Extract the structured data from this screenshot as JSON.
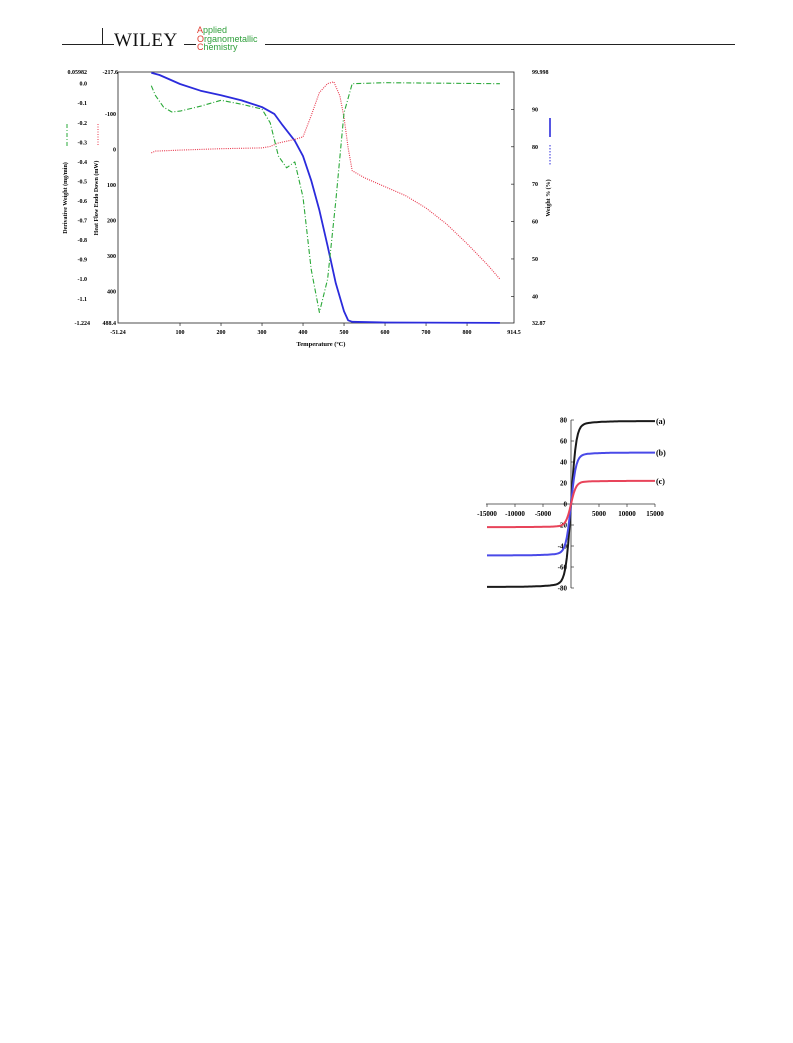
{
  "header": {
    "publisher": "WILEY",
    "journal_lines": [
      {
        "initial": "A",
        "rest": "pplied"
      },
      {
        "initial": "O",
        "rest": "rganometallic"
      },
      {
        "initial": "C",
        "rest": "hemistry"
      }
    ],
    "colors": {
      "initial": "#e03a2e",
      "rest": "#2e9e3a"
    }
  },
  "chart_data": [
    {
      "type": "line",
      "xlabel": "Temperature (ºC)",
      "x_ticks": [
        100,
        200,
        300,
        400,
        500,
        600,
        700,
        800
      ],
      "xlim": [
        -51.24,
        914.5
      ],
      "xlim_labels": [
        "-51.24",
        "914.5"
      ],
      "axes": {
        "derivative": {
          "label": "Derivative Weight (mg/min)",
          "range": [
            -1.224,
            0.05982
          ],
          "range_labels": [
            "-1.224",
            "0.05982"
          ],
          "ticks": [
            "0.0",
            "-0.1",
            "-0.2",
            "-0.3",
            "-0.4",
            "-0.5",
            "-0.6",
            "-0.7",
            "-0.8",
            "-0.9",
            "-1.0",
            "-1.1"
          ]
        },
        "heatflow": {
          "label": "Heat Flow Endo Down (mW)",
          "range": [
            -217.6,
            488.4
          ],
          "range_labels": [
            "-217.6",
            "488.4"
          ],
          "ticks": [
            "-100",
            "0",
            "100",
            "200",
            "300",
            "400"
          ],
          "inverted": true
        },
        "weight": {
          "label": "Weight % (%)",
          "range": [
            32.87,
            99.998
          ],
          "range_labels": [
            "32.87",
            "99.998"
          ],
          "ticks": [
            "90",
            "80",
            "70",
            "60",
            "50",
            "40"
          ]
        }
      },
      "series": [
        {
          "axis": "weight",
          "color": "#2b2bdc",
          "style": "solid",
          "points": [
            [
              30,
              99.8
            ],
            [
              50,
              99.2
            ],
            [
              75,
              98.0
            ],
            [
              100,
              96.8
            ],
            [
              150,
              95.0
            ],
            [
              200,
              93.8
            ],
            [
              250,
              92.4
            ],
            [
              300,
              90.6
            ],
            [
              330,
              88.8
            ],
            [
              350,
              85.8
            ],
            [
              380,
              81.6
            ],
            [
              400,
              77.5
            ],
            [
              420,
              71.0
            ],
            [
              440,
              63.0
            ],
            [
              460,
              53.5
            ],
            [
              480,
              43.5
            ],
            [
              500,
              36.0
            ],
            [
              510,
              33.6
            ],
            [
              520,
              33.2
            ],
            [
              600,
              33.0
            ],
            [
              880,
              32.9
            ]
          ]
        },
        {
          "axis": "heatflow",
          "color": "#e8344a",
          "style": "dotted",
          "points": [
            [
              30,
              10
            ],
            [
              40,
              5
            ],
            [
              60,
              4
            ],
            [
              100,
              2
            ],
            [
              150,
              0
            ],
            [
              200,
              -2
            ],
            [
              250,
              -3
            ],
            [
              300,
              -4
            ],
            [
              320,
              -8
            ],
            [
              340,
              -18
            ],
            [
              380,
              -28
            ],
            [
              400,
              -35
            ],
            [
              420,
              -95
            ],
            [
              440,
              -160
            ],
            [
              460,
              -185
            ],
            [
              475,
              -190
            ],
            [
              490,
              -150
            ],
            [
              500,
              -90
            ],
            [
              510,
              -5
            ],
            [
              520,
              60
            ],
            [
              550,
              80
            ],
            [
              600,
              105
            ],
            [
              650,
              130
            ],
            [
              700,
              165
            ],
            [
              750,
              210
            ],
            [
              800,
              265
            ],
            [
              850,
              325
            ],
            [
              880,
              365
            ]
          ]
        },
        {
          "axis": "derivative",
          "color": "#2aa838",
          "style": "dashdot",
          "points": [
            [
              30,
              -0.01
            ],
            [
              40,
              -0.06
            ],
            [
              60,
              -0.12
            ],
            [
              80,
              -0.145
            ],
            [
              100,
              -0.14
            ],
            [
              150,
              -0.115
            ],
            [
              200,
              -0.085
            ],
            [
              250,
              -0.105
            ],
            [
              300,
              -0.13
            ],
            [
              320,
              -0.2
            ],
            [
              340,
              -0.37
            ],
            [
              360,
              -0.43
            ],
            [
              380,
              -0.4
            ],
            [
              400,
              -0.58
            ],
            [
              420,
              -0.95
            ],
            [
              440,
              -1.17
            ],
            [
              460,
              -1.0
            ],
            [
              480,
              -0.6
            ],
            [
              500,
              -0.15
            ],
            [
              520,
              0.0
            ],
            [
              600,
              0.005
            ],
            [
              880,
              0.0
            ]
          ]
        }
      ]
    },
    {
      "type": "line",
      "x_ticks": [
        "-15000",
        "-10000",
        "-5000",
        "5000",
        "10000",
        "15000"
      ],
      "y_ticks": [
        "80",
        "60",
        "40",
        "20",
        "0",
        "-20",
        "-40",
        "-60",
        "-80"
      ],
      "xlim": [
        -15000,
        15000
      ],
      "ylim": [
        -80,
        80
      ],
      "series": [
        {
          "name": "(a)",
          "color": "#1a1a1a",
          "ms": 79
        },
        {
          "name": "(b)",
          "color": "#4a4ae8",
          "ms": 49
        },
        {
          "name": "(c)",
          "color": "#e8445a",
          "ms": 22
        }
      ]
    }
  ]
}
